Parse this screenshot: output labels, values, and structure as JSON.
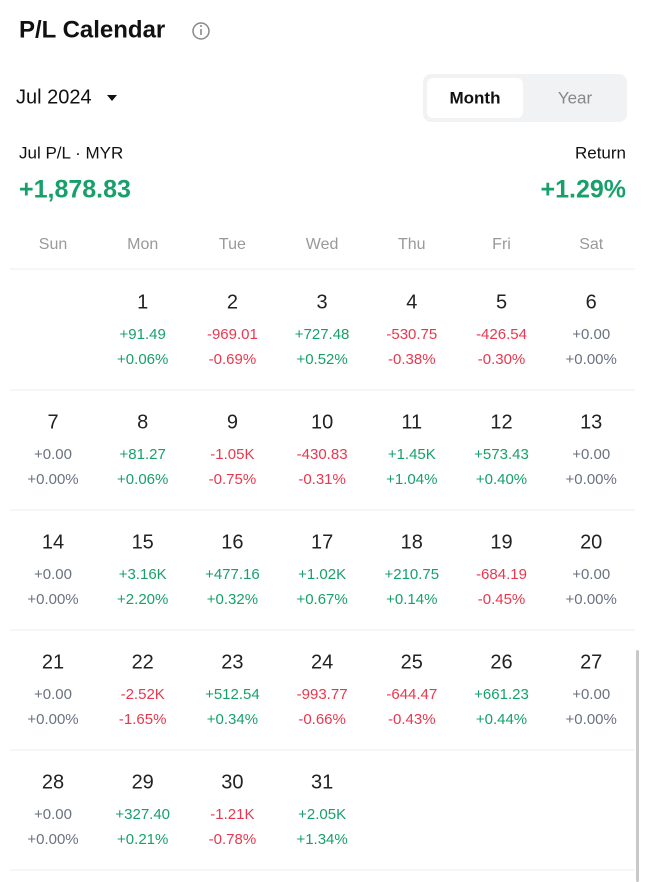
{
  "header": {
    "title": "P/L Calendar",
    "month": "Jul 2024",
    "tabs": [
      "Month",
      "Year"
    ],
    "active_tab": 0
  },
  "summary": {
    "label": "Jul P/L · MYR",
    "value": "+1,878.83",
    "return_label": "Return",
    "return_value": "+1.29%"
  },
  "weekdays": [
    "Sun",
    "Mon",
    "Tue",
    "Wed",
    "Thu",
    "Fri",
    "Sat"
  ],
  "weeks": [
    [
      null,
      {
        "day": 1,
        "pl": "+91.49",
        "pct": "+0.06%"
      },
      {
        "day": 2,
        "pl": "-969.01",
        "pct": "-0.69%"
      },
      {
        "day": 3,
        "pl": "+727.48",
        "pct": "+0.52%"
      },
      {
        "day": 4,
        "pl": "-530.75",
        "pct": "-0.38%"
      },
      {
        "day": 5,
        "pl": "-426.54",
        "pct": "-0.30%"
      },
      {
        "day": 6,
        "pl": "+0.00",
        "pct": "+0.00%"
      }
    ],
    [
      {
        "day": 7,
        "pl": "+0.00",
        "pct": "+0.00%"
      },
      {
        "day": 8,
        "pl": "+81.27",
        "pct": "+0.06%"
      },
      {
        "day": 9,
        "pl": "-1.05K",
        "pct": "-0.75%"
      },
      {
        "day": 10,
        "pl": "-430.83",
        "pct": "-0.31%"
      },
      {
        "day": 11,
        "pl": "+1.45K",
        "pct": "+1.04%"
      },
      {
        "day": 12,
        "pl": "+573.43",
        "pct": "+0.40%"
      },
      {
        "day": 13,
        "pl": "+0.00",
        "pct": "+0.00%"
      }
    ],
    [
      {
        "day": 14,
        "pl": "+0.00",
        "pct": "+0.00%"
      },
      {
        "day": 15,
        "pl": "+3.16K",
        "pct": "+2.20%"
      },
      {
        "day": 16,
        "pl": "+477.16",
        "pct": "+0.32%"
      },
      {
        "day": 17,
        "pl": "+1.02K",
        "pct": "+0.67%"
      },
      {
        "day": 18,
        "pl": "+210.75",
        "pct": "+0.14%"
      },
      {
        "day": 19,
        "pl": "-684.19",
        "pct": "-0.45%"
      },
      {
        "day": 20,
        "pl": "+0.00",
        "pct": "+0.00%"
      }
    ],
    [
      {
        "day": 21,
        "pl": "+0.00",
        "pct": "+0.00%"
      },
      {
        "day": 22,
        "pl": "-2.52K",
        "pct": "-1.65%"
      },
      {
        "day": 23,
        "pl": "+512.54",
        "pct": "+0.34%"
      },
      {
        "day": 24,
        "pl": "-993.77",
        "pct": "-0.66%"
      },
      {
        "day": 25,
        "pl": "-644.47",
        "pct": "-0.43%"
      },
      {
        "day": 26,
        "pl": "+661.23",
        "pct": "+0.44%"
      },
      {
        "day": 27,
        "pl": "+0.00",
        "pct": "+0.00%"
      }
    ],
    [
      {
        "day": 28,
        "pl": "+0.00",
        "pct": "+0.00%"
      },
      {
        "day": 29,
        "pl": "+327.40",
        "pct": "+0.21%"
      },
      {
        "day": 30,
        "pl": "-1.21K",
        "pct": "-0.78%"
      },
      {
        "day": 31,
        "pl": "+2.05K",
        "pct": "+1.34%"
      },
      null,
      null,
      null
    ]
  ]
}
